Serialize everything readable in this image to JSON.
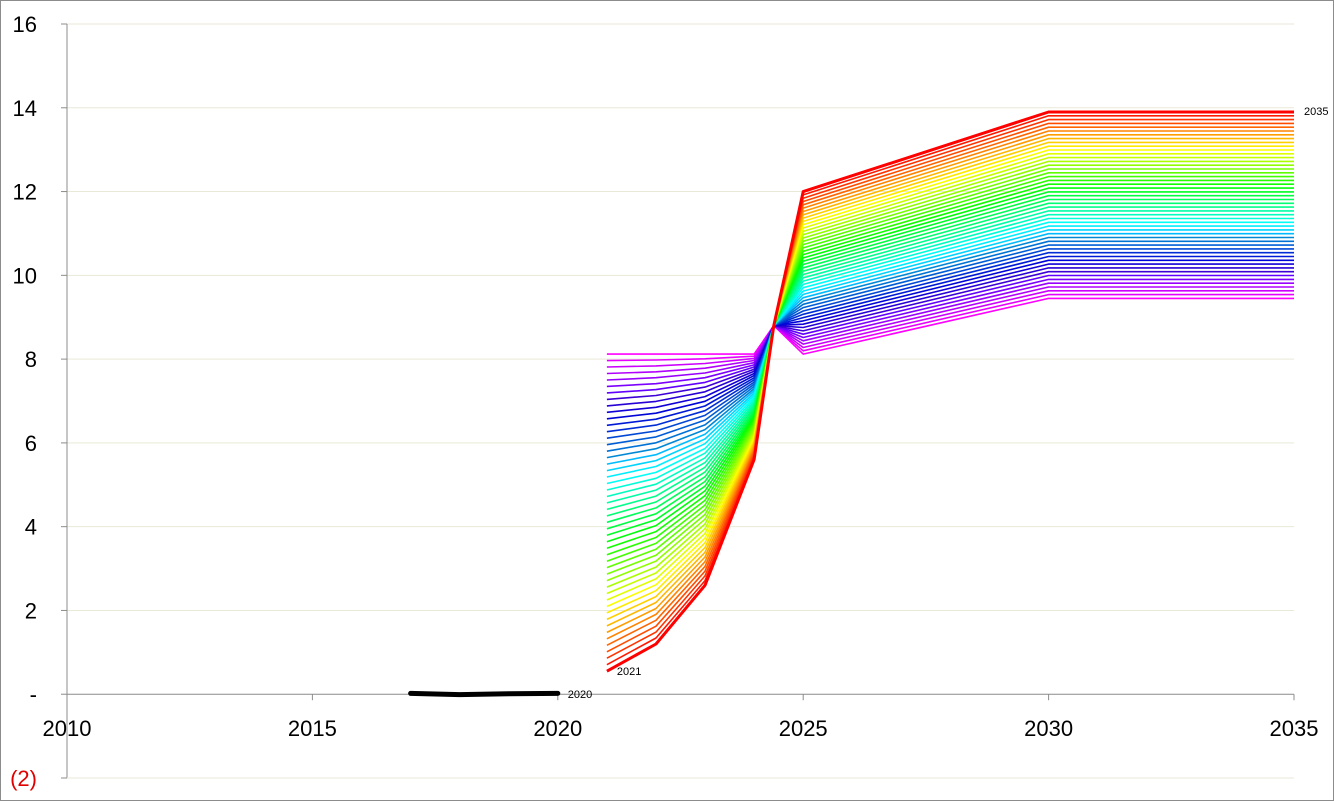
{
  "chart_data": {
    "type": "line",
    "title": "",
    "xlabel": "",
    "ylabel": "",
    "xlim": [
      2010,
      2035
    ],
    "ylim": [
      -2,
      16
    ],
    "x_ticks": [
      2010,
      2015,
      2020,
      2025,
      2030,
      2035
    ],
    "x_tick_labels": [
      "2010",
      "2015",
      "2020",
      "2025",
      "2030",
      "2035"
    ],
    "y_ticks": [
      -2,
      0,
      2,
      4,
      6,
      8,
      10,
      12,
      14,
      16
    ],
    "y_tick_labels": [
      "(2)",
      "-",
      "2",
      "4",
      "6",
      "8",
      "10",
      "12",
      "14",
      "16"
    ],
    "negative_tick_color": "#e00000",
    "grid": "horizontal",
    "grid_color": "#e9e9d8",
    "history": {
      "name": "2020",
      "color": "#000000",
      "x": [
        2017,
        2018,
        2019,
        2020
      ],
      "y": [
        0.02,
        -0.01,
        0.01,
        0.02
      ]
    },
    "fan": {
      "series_count": 50,
      "x": [
        2021,
        2022,
        2023,
        2024,
        2025,
        2030,
        2035
      ],
      "first_label": "2021",
      "last_label": "2035",
      "color_order": "magenta to blue to cyan to green to yellow to red",
      "first_series_y": [
        8.12,
        8.12,
        8.12,
        8.12,
        8.12,
        9.45,
        9.45
      ],
      "last_series_y": [
        0.55,
        1.2,
        2.6,
        5.6,
        12.0,
        13.9,
        13.9
      ],
      "anchor": {
        "x": 2024.4,
        "y": 8.8
      }
    },
    "annotations": [
      {
        "text": "2020",
        "x": 2020,
        "y": 0
      },
      {
        "text": "2021",
        "x": 2021,
        "y": 0.55
      },
      {
        "text": "2035",
        "x": 2035,
        "y": 13.9
      }
    ]
  }
}
